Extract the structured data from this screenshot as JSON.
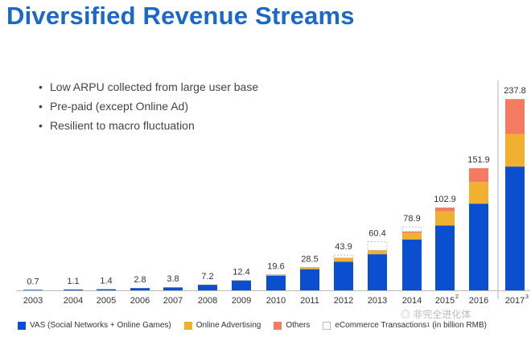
{
  "title": "Diversified Revenue Streams",
  "bullets": [
    "Low ARPU collected from large user base",
    "Pre-paid (except Online Ad)",
    "Resilient to macro fluctuation"
  ],
  "watermark": "◎ 非完全进化体",
  "chart_data": {
    "type": "bar",
    "stacked": true,
    "unit": "(in billion RMB)",
    "categories": [
      "2003",
      "2004",
      "2005",
      "2006",
      "2007",
      "2008",
      "2009",
      "2010",
      "2011",
      "2012",
      "2013",
      "2014",
      "2015",
      "2016",
      "2017"
    ],
    "category_footnotes": {
      "2015": "2",
      "2017": "3"
    },
    "totals": [
      0.7,
      1.1,
      1.4,
      2.8,
      3.8,
      7.2,
      12.4,
      19.6,
      28.5,
      43.9,
      60.4,
      78.9,
      102.9,
      151.9,
      237.8
    ],
    "series": [
      {
        "name": "VAS (Social Networks + Online Games)",
        "color": "#0a4fd0",
        "values": [
          0.7,
          1.1,
          1.4,
          2.8,
          3.6,
          6.9,
          12.0,
          18.3,
          26.3,
          35.7,
          44.9,
          63.3,
          80.7,
          107.8,
          153.9
        ]
      },
      {
        "name": "Online Advertising",
        "color": "#f0b030",
        "values": [
          0,
          0,
          0,
          0,
          0.2,
          0.3,
          0.3,
          0.9,
          2.0,
          4.7,
          5.0,
          8.3,
          17.5,
          27.0,
          40.4
        ]
      },
      {
        "name": "Others",
        "color": "#f57a62",
        "values": [
          0,
          0,
          0,
          0,
          0,
          0,
          0,
          0,
          0,
          0,
          0,
          1.6,
          4.7,
          17.1,
          43.5
        ]
      },
      {
        "name": "eCommerce Transactions",
        "footnote": "1",
        "color": "#ffffff",
        "values": [
          0,
          0,
          0,
          0,
          0,
          0,
          0.1,
          0.4,
          0.2,
          3.5,
          10.5,
          5.7,
          0,
          0,
          0
        ]
      }
    ],
    "legend_position": "bottom",
    "ylim": [
      0,
      240
    ],
    "grid": false
  }
}
